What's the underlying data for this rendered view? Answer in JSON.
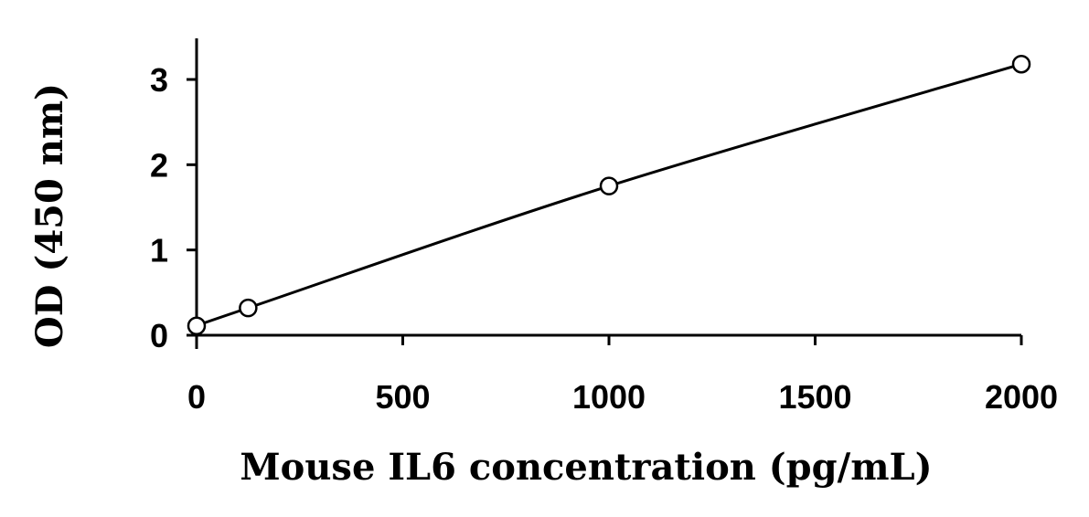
{
  "chart_data": {
    "type": "scatter",
    "title": "",
    "xlabel": "Mouse IL6 concentration (pg/mL)",
    "ylabel": "OD (450 nm)",
    "xlim": [
      0,
      2000
    ],
    "ylim": [
      0,
      3.5
    ],
    "x_ticks": [
      0,
      500,
      1000,
      1500,
      2000
    ],
    "y_ticks": [
      0,
      1,
      2,
      3
    ],
    "grid": false,
    "legend": "none",
    "series": [
      {
        "marker": "open-circle",
        "line": "smooth-fit",
        "x": [
          0,
          125,
          1000,
          2000
        ],
        "y": [
          0.11,
          0.32,
          1.75,
          3.18
        ]
      }
    ]
  }
}
